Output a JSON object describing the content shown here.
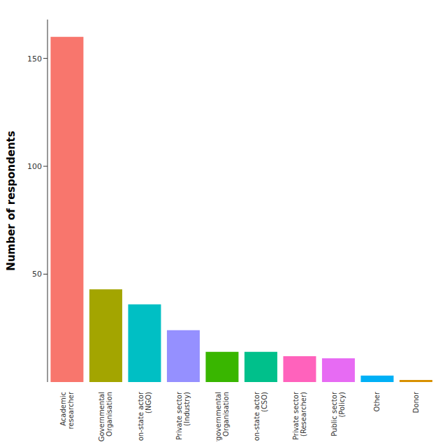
{
  "chart_data": {
    "type": "bar",
    "y_label": "Number of respondents",
    "categories": [
      "Academic\nresearcher",
      "Governmental\nOrganisation",
      "Non-state actor\n(NGO)",
      "Private sector\n(Industry)",
      "Intergovernmental\nOrganisation",
      "Non-state actor\n(CSO)",
      "Private sector\n(Researcher)",
      "Public sector\n(Policy)",
      "Other",
      "Donor"
    ],
    "values": [
      160,
      43,
      36,
      24,
      14,
      14,
      12,
      11,
      3,
      1
    ],
    "colors": [
      "#F8766D",
      "#A3A500",
      "#00BFC4",
      "#9590FF",
      "#39B600",
      "#00C08B",
      "#FF62BC",
      "#E76BF3",
      "#00B0F6",
      "#D89000"
    ],
    "ylim": [
      0,
      168
    ],
    "yticks": [
      50,
      100,
      150
    ],
    "grid": false
  }
}
